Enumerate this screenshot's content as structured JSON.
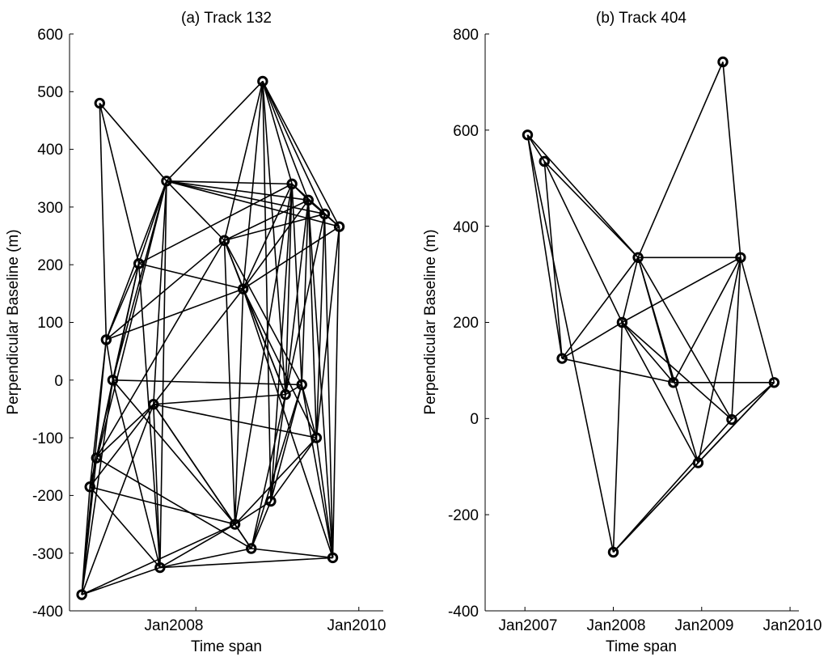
{
  "chart_data": [
    {
      "type": "scatter",
      "id": "track132",
      "title": "(a) Track 132",
      "xlabel": "Time span",
      "ylabel": "Perpendicular Baseline (m)",
      "x_unit": "year",
      "xlim": [
        2006.45,
        2010.3
      ],
      "ylim": [
        -400,
        600
      ],
      "yticks": [
        600,
        500,
        400,
        300,
        200,
        100,
        0,
        -100,
        -200,
        -300,
        -400
      ],
      "xticks": [
        {
          "value": 2008.0,
          "label": "Jan2008"
        },
        {
          "value": 2010.0,
          "label": "Jan2010"
        }
      ],
      "grid": false,
      "nodes": [
        {
          "x": 2006.6,
          "y": -372
        },
        {
          "x": 2006.7,
          "y": -185
        },
        {
          "x": 2006.78,
          "y": -135
        },
        {
          "x": 2006.9,
          "y": 70
        },
        {
          "x": 2006.98,
          "y": 0
        },
        {
          "x": 2006.82,
          "y": 480
        },
        {
          "x": 2007.3,
          "y": 202
        },
        {
          "x": 2007.48,
          "y": -42
        },
        {
          "x": 2007.56,
          "y": -325
        },
        {
          "x": 2007.64,
          "y": 345
        },
        {
          "x": 2008.35,
          "y": 242
        },
        {
          "x": 2008.48,
          "y": -250
        },
        {
          "x": 2008.58,
          "y": 158
        },
        {
          "x": 2008.68,
          "y": -292
        },
        {
          "x": 2008.82,
          "y": 518
        },
        {
          "x": 2008.92,
          "y": -210
        },
        {
          "x": 2009.1,
          "y": -25
        },
        {
          "x": 2009.18,
          "y": 340
        },
        {
          "x": 2009.3,
          "y": -8
        },
        {
          "x": 2009.38,
          "y": 312
        },
        {
          "x": 2009.48,
          "y": -100
        },
        {
          "x": 2009.58,
          "y": 288
        },
        {
          "x": 2009.68,
          "y": -308
        },
        {
          "x": 2009.76,
          "y": 266
        }
      ],
      "edges": [
        [
          0,
          1
        ],
        [
          0,
          2
        ],
        [
          0,
          3
        ],
        [
          0,
          4
        ],
        [
          0,
          7
        ],
        [
          0,
          8
        ],
        [
          0,
          11
        ],
        [
          1,
          2
        ],
        [
          1,
          3
        ],
        [
          1,
          7
        ],
        [
          1,
          8
        ],
        [
          1,
          11
        ],
        [
          1,
          9
        ],
        [
          2,
          4
        ],
        [
          2,
          6
        ],
        [
          2,
          7
        ],
        [
          2,
          10
        ],
        [
          2,
          13
        ],
        [
          3,
          4
        ],
        [
          3,
          6
        ],
        [
          3,
          9
        ],
        [
          3,
          10
        ],
        [
          3,
          12
        ],
        [
          4,
          8
        ],
        [
          4,
          11
        ],
        [
          4,
          18
        ],
        [
          4,
          6
        ],
        [
          4,
          9
        ],
        [
          5,
          9
        ],
        [
          5,
          3
        ],
        [
          5,
          6
        ],
        [
          6,
          9
        ],
        [
          6,
          12
        ],
        [
          6,
          8
        ],
        [
          6,
          17
        ],
        [
          7,
          8
        ],
        [
          7,
          9
        ],
        [
          7,
          11
        ],
        [
          7,
          12
        ],
        [
          7,
          13
        ],
        [
          7,
          16
        ],
        [
          7,
          20
        ],
        [
          8,
          11
        ],
        [
          8,
          13
        ],
        [
          8,
          22
        ],
        [
          8,
          9
        ],
        [
          9,
          10
        ],
        [
          9,
          14
        ],
        [
          9,
          17
        ],
        [
          9,
          19
        ],
        [
          9,
          21
        ],
        [
          9,
          23
        ],
        [
          10,
          11
        ],
        [
          10,
          14
        ],
        [
          10,
          12
        ],
        [
          10,
          18
        ],
        [
          10,
          19
        ],
        [
          10,
          21
        ],
        [
          10,
          16
        ],
        [
          11,
          12
        ],
        [
          11,
          13
        ],
        [
          11,
          15
        ],
        [
          11,
          17
        ],
        [
          11,
          20
        ],
        [
          12,
          14
        ],
        [
          12,
          16
        ],
        [
          12,
          20
        ],
        [
          12,
          23
        ],
        [
          12,
          22
        ],
        [
          12,
          17
        ],
        [
          12,
          19
        ],
        [
          13,
          16
        ],
        [
          13,
          18
        ],
        [
          13,
          22
        ],
        [
          13,
          15
        ],
        [
          14,
          15
        ],
        [
          14,
          17
        ],
        [
          14,
          19
        ],
        [
          14,
          21
        ],
        [
          14,
          23
        ],
        [
          14,
          16
        ],
        [
          15,
          16
        ],
        [
          15,
          18
        ],
        [
          15,
          20
        ],
        [
          15,
          17
        ],
        [
          16,
          17
        ],
        [
          16,
          19
        ],
        [
          16,
          21
        ],
        [
          16,
          18
        ],
        [
          17,
          18
        ],
        [
          17,
          19
        ],
        [
          17,
          21
        ],
        [
          17,
          23
        ],
        [
          18,
          19
        ],
        [
          18,
          22
        ],
        [
          18,
          20
        ],
        [
          19,
          21
        ],
        [
          19,
          23
        ],
        [
          19,
          20
        ],
        [
          19,
          22
        ],
        [
          20,
          21
        ],
        [
          20,
          22
        ],
        [
          20,
          23
        ],
        [
          21,
          23
        ],
        [
          21,
          22
        ],
        [
          22,
          23
        ]
      ]
    },
    {
      "type": "scatter",
      "id": "track404",
      "title": "(b) Track 404",
      "xlabel": "Time span",
      "ylabel": "Perpendicular Baseline (m)",
      "x_unit": "year",
      "xlim": [
        2006.55,
        2010.1
      ],
      "ylim": [
        -400,
        800
      ],
      "yticks": [
        800,
        600,
        400,
        200,
        0,
        -200,
        -400
      ],
      "xticks": [
        {
          "value": 2007.0,
          "label": "Jan2007"
        },
        {
          "value": 2008.0,
          "label": "Jan2008"
        },
        {
          "value": 2009.0,
          "label": "Jan2009"
        },
        {
          "value": 2010.0,
          "label": "Jan2010"
        }
      ],
      "grid": false,
      "nodes": [
        {
          "x": 2007.03,
          "y": 590
        },
        {
          "x": 2007.22,
          "y": 535
        },
        {
          "x": 2007.42,
          "y": 125
        },
        {
          "x": 2008.0,
          "y": -278
        },
        {
          "x": 2008.1,
          "y": 200
        },
        {
          "x": 2008.28,
          "y": 335
        },
        {
          "x": 2008.68,
          "y": 75
        },
        {
          "x": 2008.96,
          "y": -92
        },
        {
          "x": 2009.24,
          "y": 742
        },
        {
          "x": 2009.34,
          "y": -2
        },
        {
          "x": 2009.44,
          "y": 335
        },
        {
          "x": 2009.82,
          "y": 75
        }
      ],
      "edges": [
        [
          0,
          1
        ],
        [
          0,
          2
        ],
        [
          0,
          5
        ],
        [
          0,
          3
        ],
        [
          1,
          2
        ],
        [
          1,
          5
        ],
        [
          1,
          4
        ],
        [
          2,
          4
        ],
        [
          2,
          5
        ],
        [
          2,
          6
        ],
        [
          3,
          4
        ],
        [
          3,
          7
        ],
        [
          3,
          9
        ],
        [
          3,
          11
        ],
        [
          4,
          5
        ],
        [
          4,
          6
        ],
        [
          4,
          7
        ],
        [
          4,
          9
        ],
        [
          4,
          10
        ],
        [
          5,
          6
        ],
        [
          5,
          7
        ],
        [
          5,
          8
        ],
        [
          5,
          10
        ],
        [
          5,
          9
        ],
        [
          6,
          10
        ],
        [
          6,
          11
        ],
        [
          7,
          10
        ],
        [
          7,
          11
        ],
        [
          8,
          10
        ],
        [
          9,
          10
        ],
        [
          9,
          11
        ],
        [
          10,
          11
        ]
      ]
    }
  ]
}
